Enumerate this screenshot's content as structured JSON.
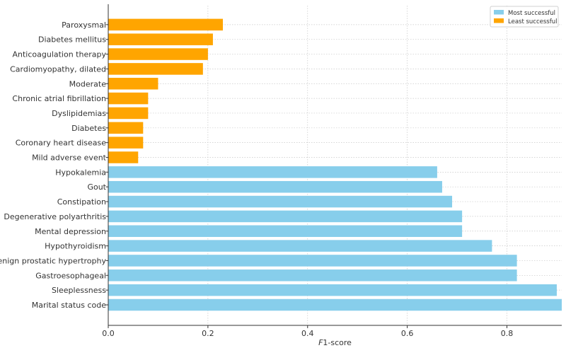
{
  "chart_data": {
    "type": "bar",
    "orientation": "horizontal",
    "xlabel_prefix": "F",
    "xlabel_rest": "1-score",
    "xlim": [
      0,
      0.91
    ],
    "xticks": [
      "0.0",
      "0.2",
      "0.4",
      "0.6",
      "0.8"
    ],
    "grid": true,
    "legend_position": "top-right",
    "series": [
      {
        "name": "Most successful",
        "color": "#87CEEB",
        "categories": [
          "Marital status code",
          "Sleeplessness",
          "Gastroesophageal",
          "Benign prostatic hypertrophy",
          "Hypothyroidism",
          "Mental depression",
          "Degenerative polyarthritis",
          "Constipation",
          "Gout",
          "Hypokalemia"
        ],
        "values": [
          0.91,
          0.9,
          0.82,
          0.82,
          0.77,
          0.71,
          0.71,
          0.69,
          0.67,
          0.66
        ]
      },
      {
        "name": "Least successful",
        "color": "#FFA500",
        "categories": [
          "Mild adverse event",
          "Coronary heart disease",
          "Diabetes",
          "Dyslipidemias",
          "Chronic atrial fibrillation",
          "Moderate",
          "Cardiomyopathy, dilated",
          "Anticoagulation therapy",
          "Diabetes mellitus",
          "Paroxysmal"
        ],
        "values": [
          0.06,
          0.07,
          0.07,
          0.08,
          0.08,
          0.1,
          0.19,
          0.2,
          0.21,
          0.23
        ]
      }
    ]
  }
}
